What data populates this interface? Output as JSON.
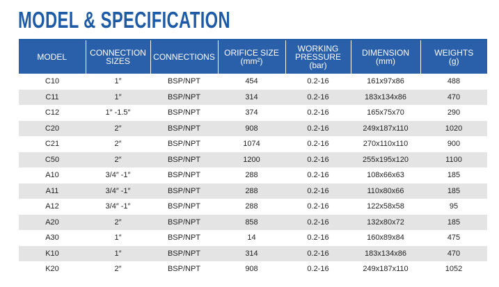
{
  "header": {
    "title": "MODEL & SPECIFICATION"
  },
  "table": {
    "columns": [
      [
        "MODEL"
      ],
      [
        "CONNECTION",
        "SIZES"
      ],
      [
        "CONNECTIONS"
      ],
      [
        "ORIFICE SIZE",
        "(mm²)"
      ],
      [
        "WORKING",
        "PRESSURE",
        "(bar)"
      ],
      [
        "DIMENSION",
        "(mm)"
      ],
      [
        "WEIGHTS",
        "(g)"
      ]
    ],
    "rows": [
      [
        "C10",
        "1″",
        "BSP/NPT",
        454,
        "0.2-16",
        "161x97x86",
        488
      ],
      [
        "C11",
        "1″",
        "BSP/NPT",
        314,
        "0.2-16",
        "183x134x86",
        470
      ],
      [
        "C12",
        "1″ -1.5″",
        "BSP/NPT",
        374,
        "0.2-16",
        "165x75x70",
        290
      ],
      [
        "C20",
        "2″",
        "BSP/NPT",
        908,
        "0.2-16",
        "249x187x110",
        1020
      ],
      [
        "C21",
        "2″",
        "BSP/NPT",
        1074,
        "0.2-16",
        "270x110x110",
        900
      ],
      [
        "C50",
        "2″",
        "BSP/NPT",
        1200,
        "0.2-16",
        "255x195x120",
        1100
      ],
      [
        "A10",
        "3/4″ -1″",
        "BSP/NPT",
        288,
        "0.2-16",
        "108x66x63",
        185
      ],
      [
        "A11",
        "3/4″ -1″",
        "BSP/NPT",
        288,
        "0.2-16",
        "110x80x66",
        185
      ],
      [
        "A12",
        "3/4″ -1″",
        "BSP/NPT",
        288,
        "0.2-16",
        "122x58x58",
        95
      ],
      [
        "A20",
        "2″",
        "BSP/NPT",
        858,
        "0.2-16",
        "132x80x72",
        185
      ],
      [
        "A30",
        "1″",
        "BSP/NPT",
        14,
        "0.2-16",
        "160x89x84",
        475
      ],
      [
        "K10",
        "1″",
        "BSP/NPT",
        314,
        "0.2-16",
        "183x134x86",
        470
      ],
      [
        "K20",
        "2″",
        "BSP/NPT",
        908,
        "0.2-16",
        "249x187x110",
        1052
      ]
    ]
  }
}
